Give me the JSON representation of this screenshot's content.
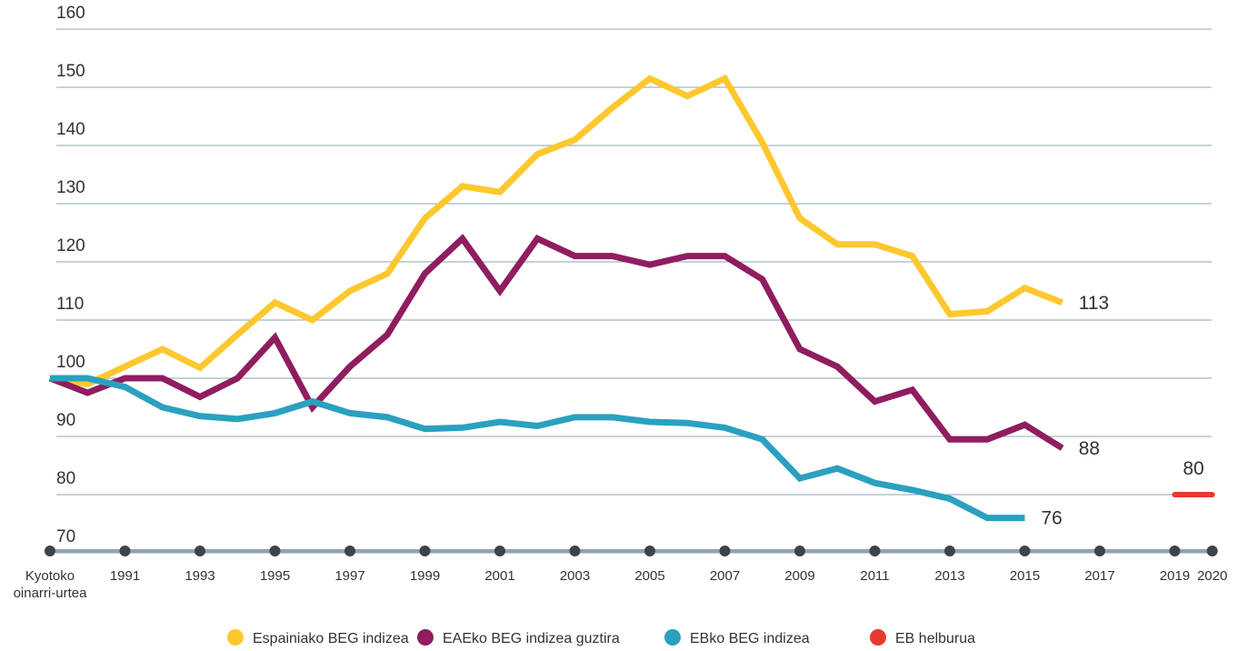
{
  "chart_data": {
    "type": "line",
    "categories": [
      "Kyotoko oinarri-urtea",
      null,
      "1991",
      null,
      "1993",
      null,
      "1995",
      null,
      "1997",
      null,
      "1999",
      null,
      "2001",
      null,
      "2003",
      null,
      "2005",
      null,
      "2007",
      null,
      "2009",
      null,
      "2011",
      null,
      "2013",
      null,
      "2015",
      null,
      "2017",
      null,
      "2019",
      "2020"
    ],
    "series": [
      {
        "name": "Espainiako BEG indizea",
        "color": "#fdc82f",
        "values": [
          100,
          99,
          102,
          105,
          101.8,
          107.5,
          113,
          110,
          115,
          118,
          127.5,
          133,
          132,
          138.5,
          141,
          146.5,
          151.5,
          148.5,
          151.5,
          140.5,
          127.5,
          123,
          123,
          121,
          111,
          111.5,
          115.5,
          113,
          null,
          null,
          null,
          null
        ]
      },
      {
        "name": "EAEko BEG indizea guztira",
        "color": "#8f1d5f",
        "values": [
          100,
          97.5,
          100,
          100,
          96.8,
          100,
          107,
          95,
          102,
          107.5,
          118,
          124,
          115,
          124,
          121,
          121,
          119.5,
          121,
          121,
          117,
          105,
          102,
          96,
          98,
          89.5,
          89.5,
          92,
          88,
          null,
          null,
          null,
          null
        ]
      },
      {
        "name": "EBko BEG indizea",
        "color": "#2aa1bf",
        "values": [
          100,
          100,
          98.5,
          95,
          93.5,
          93,
          94,
          96,
          94,
          93.3,
          91.3,
          91.5,
          92.5,
          91.8,
          93.3,
          93.3,
          92.5,
          92.3,
          91.5,
          89.5,
          82.8,
          84.5,
          82,
          80.8,
          79.3,
          76,
          76,
          null,
          null,
          null,
          null,
          null
        ]
      },
      {
        "name": "EB helburua",
        "color": "#e8392f",
        "values": [
          null,
          null,
          null,
          null,
          null,
          null,
          null,
          null,
          null,
          null,
          null,
          null,
          null,
          null,
          null,
          null,
          null,
          null,
          null,
          null,
          null,
          null,
          null,
          null,
          null,
          null,
          null,
          null,
          null,
          null,
          80,
          80
        ]
      }
    ],
    "ylim": [
      70,
      160
    ],
    "yticks": [
      70,
      80,
      90,
      100,
      110,
      120,
      130,
      140,
      150,
      160
    ],
    "grid": true,
    "legend": "bottom"
  }
}
